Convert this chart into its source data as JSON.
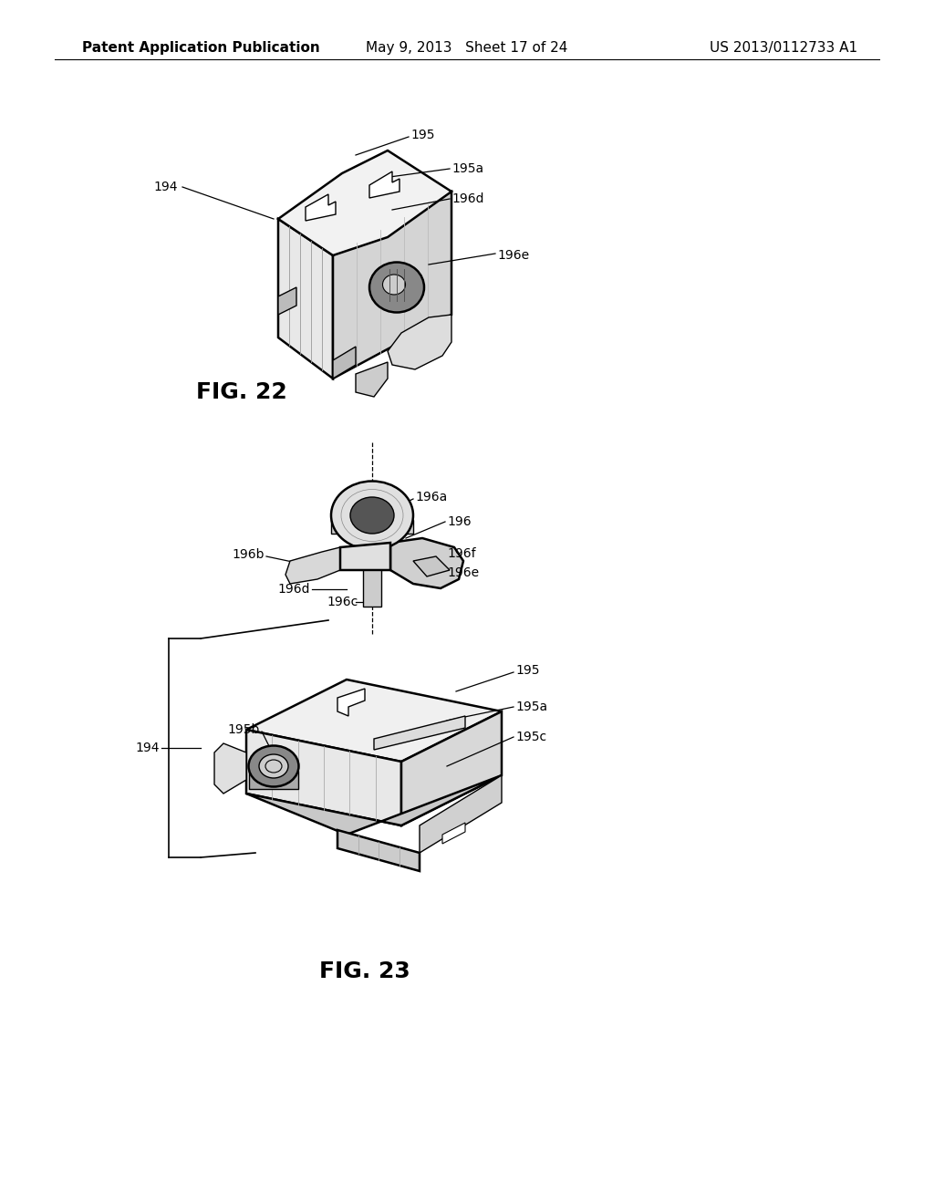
{
  "background_color": "#ffffff",
  "header_left": "Patent Application Publication",
  "header_center": "May 9, 2013   Sheet 17 of 24",
  "header_right": "US 2013/0112733 A1",
  "fig22_label": "FIG. 22",
  "fig23_label": "FIG. 23",
  "header_fontsize": 11,
  "fig_label_fontsize": 18,
  "annotation_fontsize": 10,
  "line_color": "#000000",
  "lw_main": 1.8,
  "lw_thin": 1.0,
  "lw_hatch": 0.7
}
